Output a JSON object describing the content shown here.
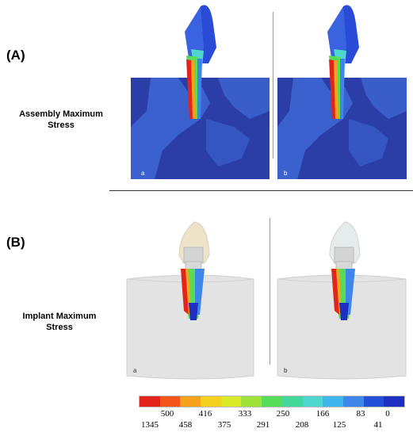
{
  "panel_a": {
    "label": "(A)",
    "row_title": [
      "Assembly Maximum",
      "Stress"
    ],
    "images": [
      {
        "tag": "a"
      },
      {
        "tag": "b"
      }
    ]
  },
  "panel_b": {
    "label": "(B)",
    "row_title": [
      "Implant Maximum",
      "Stress"
    ],
    "images": [
      {
        "tag": "a"
      },
      {
        "tag": "b"
      }
    ]
  },
  "legend": {
    "colors": [
      "#e3241b",
      "#f2561a",
      "#f6a21c",
      "#f3d11e",
      "#d8ea2a",
      "#9fe23a",
      "#56dc56",
      "#43d89a",
      "#4fd6cf",
      "#40b7ec",
      "#3f86ea",
      "#2450d8",
      "#1f2fc2"
    ],
    "upper_labels": [
      "500",
      "416",
      "333",
      "250",
      "166",
      "83",
      "0"
    ],
    "lower_labels": [
      "1345",
      "458",
      "375",
      "291",
      "208",
      "125",
      "41"
    ]
  },
  "colors": {
    "bone_dark": "#2b3ea8",
    "bone_light": "#3f6ad6",
    "cylinder": "#e3e3e3",
    "crown_a": "#ece3c9",
    "crown_b": "#e6eceb",
    "divider": "#333333"
  }
}
